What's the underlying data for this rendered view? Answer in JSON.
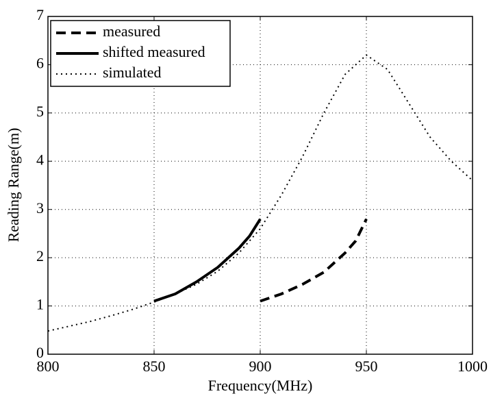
{
  "chart_data": {
    "type": "line",
    "xlabel": "Frequency(MHz)",
    "ylabel": "Reading Range(m)",
    "xlim": [
      800,
      1000
    ],
    "ylim": [
      0,
      7
    ],
    "xticks": [
      800,
      850,
      900,
      950,
      1000
    ],
    "yticks": [
      0,
      1,
      2,
      3,
      4,
      5,
      6,
      7
    ],
    "grid": true,
    "legend": "upper left",
    "series": [
      {
        "name": "measured",
        "color": "#000000",
        "linestyle": "dashed",
        "x": [
          900,
          910,
          920,
          930,
          940,
          945,
          950
        ],
        "values": [
          1.1,
          1.25,
          1.45,
          1.7,
          2.1,
          2.35,
          2.8
        ]
      },
      {
        "name": "shifted measured",
        "color": "#000000",
        "linestyle": "solid",
        "x": [
          850,
          860,
          870,
          880,
          890,
          895,
          900
        ],
        "values": [
          1.1,
          1.25,
          1.5,
          1.8,
          2.2,
          2.45,
          2.8
        ]
      },
      {
        "name": "simulated",
        "color": "#000000",
        "linestyle": "dotted",
        "x": [
          800,
          810,
          820,
          830,
          840,
          850,
          860,
          870,
          880,
          890,
          900,
          910,
          920,
          930,
          940,
          950,
          960,
          970,
          980,
          990,
          1000
        ],
        "values": [
          0.48,
          0.58,
          0.68,
          0.8,
          0.93,
          1.08,
          1.25,
          1.45,
          1.72,
          2.1,
          2.6,
          3.3,
          4.1,
          5.0,
          5.8,
          6.2,
          5.9,
          5.2,
          4.5,
          4.0,
          3.6
        ]
      }
    ]
  }
}
